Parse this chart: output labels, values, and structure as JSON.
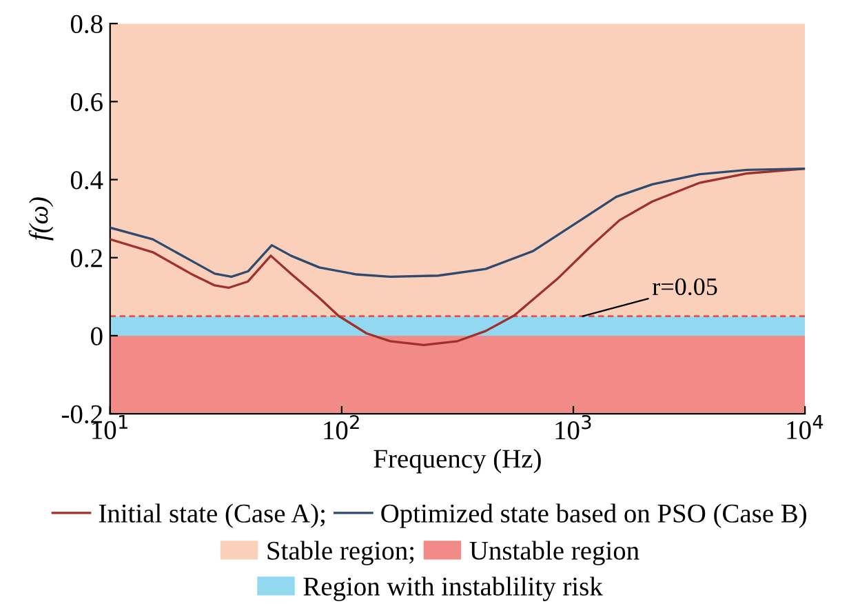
{
  "chart_data": {
    "type": "line",
    "xlabel": "Frequency (Hz)",
    "ylabel": "f(ω)",
    "log": "x",
    "xlim": [
      10,
      10000
    ],
    "xticks": [
      {
        "value": 10,
        "label": "10$^{1}$"
      },
      {
        "value": 100,
        "label": "10$^{2}$"
      },
      {
        "value": 1000,
        "label": "10$^{3}$"
      },
      {
        "value": 10000,
        "label": "10$^{4}$"
      }
    ],
    "ylim": [
      -0.2,
      0.8
    ],
    "yticks": [
      -0.2,
      0,
      0.2,
      0.4,
      0.6,
      0.8
    ],
    "grid": false,
    "legend": "bottom",
    "marker": "none",
    "line_style": "solid",
    "series": [
      {
        "name": "Initial state (Case A);",
        "color": "#a0302c",
        "x": [
          10,
          15.3,
          22.3,
          28.3,
          32.6,
          39.4,
          49.4,
          60.4,
          80,
          96.8,
          128,
          162,
          226,
          316,
          418,
          556,
          851,
          1189,
          1583,
          2192,
          3516,
          5640,
          10000
        ],
        "values": [
          0.247,
          0.214,
          0.159,
          0.129,
          0.123,
          0.139,
          0.205,
          0.159,
          0.097,
          0.051,
          0.006,
          -0.014,
          -0.024,
          -0.014,
          0.012,
          0.052,
          0.145,
          0.229,
          0.296,
          0.344,
          0.392,
          0.416,
          0.428
        ]
      },
      {
        "name": "Optimized state based on PSO (Case B)",
        "color": "#2f4a6e",
        "x": [
          10,
          15.3,
          22.3,
          28.3,
          33.4,
          39.4,
          49.9,
          60.4,
          80,
          116,
          162,
          261,
          418,
          670,
          1074,
          1534,
          2192,
          3516,
          5640,
          10000
        ],
        "values": [
          0.277,
          0.247,
          0.193,
          0.159,
          0.151,
          0.165,
          0.232,
          0.205,
          0.175,
          0.157,
          0.151,
          0.154,
          0.171,
          0.217,
          0.296,
          0.356,
          0.388,
          0.414,
          0.425,
          0.428
        ]
      }
    ],
    "bands": [
      {
        "axis": "y",
        "from": 0.05,
        "to": 0.8,
        "label": "Stable region;",
        "color": "#fad0bb"
      },
      {
        "axis": "y",
        "from": -0.2,
        "to": 0,
        "label": "Unstable region",
        "color": "#f28b87"
      },
      {
        "axis": "y",
        "from": 0,
        "to": 0.05,
        "label": "Region with instablility risk",
        "color": "#92d8f1"
      }
    ],
    "ref_lines": [
      {
        "axis": "y",
        "value": 0.05,
        "label": "r=0.05",
        "color": "#e8504a",
        "line_style": "dashed"
      }
    ]
  }
}
